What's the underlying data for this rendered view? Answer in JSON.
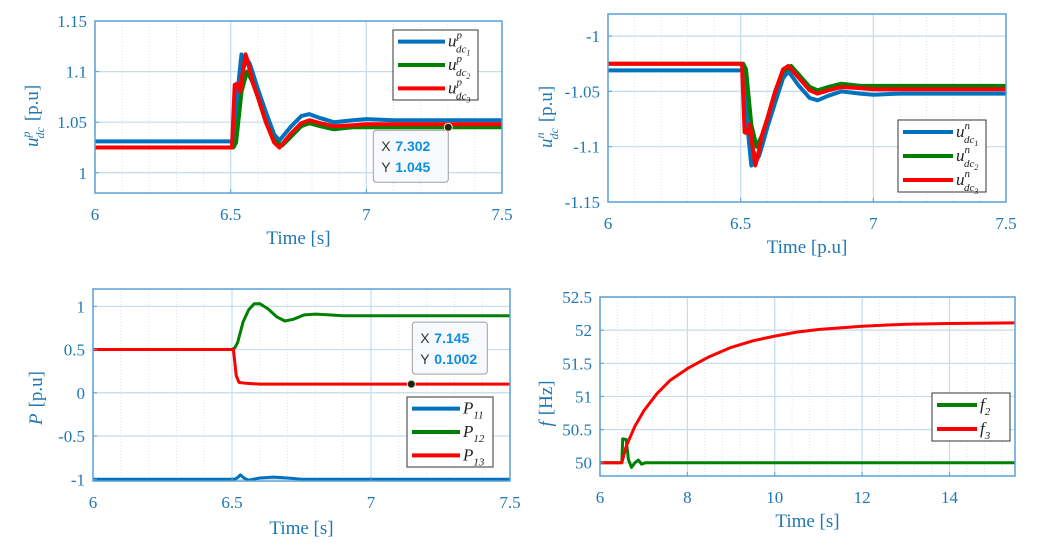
{
  "chart_data": [
    {
      "id": "udc_p",
      "type": "line",
      "xlabel": "Time [s]",
      "ylabel": {
        "base": "u",
        "sup": "p",
        "sub": "dc",
        "unit": "[p.u]"
      },
      "xlim": [
        6,
        7.5
      ],
      "ylim": [
        0.98,
        1.15
      ],
      "xticks": [
        6,
        6.5,
        7,
        7.5
      ],
      "xtick_labels": [
        "6",
        "6.5",
        "7",
        "7.5"
      ],
      "yticks": [
        1,
        1.05,
        1.1,
        1.15
      ],
      "ytick_labels": [
        "1",
        "1.05",
        "1.1",
        "1.15"
      ],
      "grid": true,
      "legend_position": "top-right",
      "series": [
        {
          "name": "u^p_dc1",
          "label": {
            "base": "u",
            "sup": "p",
            "sub": "dc",
            "idx": "1"
          },
          "color": "#0072bd",
          "x": [
            6,
            6.51,
            6.525,
            6.54,
            6.55,
            6.56,
            6.57,
            6.58,
            6.6,
            6.63,
            6.66,
            6.68,
            6.72,
            6.76,
            6.79,
            6.83,
            6.88,
            6.95,
            7.0,
            7.1,
            7.3,
            7.5
          ],
          "y": [
            1.031,
            1.031,
            1.08,
            1.117,
            1.105,
            1.112,
            1.108,
            1.1,
            1.083,
            1.06,
            1.038,
            1.032,
            1.045,
            1.056,
            1.058,
            1.054,
            1.05,
            1.052,
            1.053,
            1.052,
            1.052,
            1.052
          ]
        },
        {
          "name": "u^p_dc2",
          "label": {
            "base": "u",
            "sup": "p",
            "sub": "dc",
            "idx": "2"
          },
          "color": "#008000",
          "x": [
            6,
            6.51,
            6.52,
            6.54,
            6.56,
            6.58,
            6.6,
            6.63,
            6.66,
            6.69,
            6.72,
            6.76,
            6.79,
            6.83,
            6.88,
            6.95,
            7.0,
            7.1,
            7.3,
            7.5
          ],
          "y": [
            1.025,
            1.025,
            1.03,
            1.08,
            1.1,
            1.09,
            1.075,
            1.05,
            1.032,
            1.027,
            1.035,
            1.046,
            1.049,
            1.046,
            1.043,
            1.045,
            1.045,
            1.045,
            1.045,
            1.045
          ]
        },
        {
          "name": "u^p_dc3",
          "label": {
            "base": "u",
            "sup": "p",
            "sub": "dc",
            "idx": "3"
          },
          "color": "#ff0000",
          "x": [
            6,
            6.505,
            6.515,
            6.525,
            6.535,
            6.545,
            6.555,
            6.565,
            6.58,
            6.6,
            6.63,
            6.66,
            6.68,
            6.72,
            6.76,
            6.79,
            6.83,
            6.88,
            6.95,
            7.0,
            7.1,
            7.3,
            7.5
          ],
          "y": [
            1.025,
            1.025,
            1.087,
            1.088,
            1.08,
            1.1,
            1.117,
            1.108,
            1.09,
            1.075,
            1.05,
            1.03,
            1.025,
            1.038,
            1.049,
            1.052,
            1.049,
            1.046,
            1.047,
            1.048,
            1.048,
            1.048,
            1.048
          ]
        }
      ],
      "datatip": {
        "x_label": "X",
        "x_value": "7.302",
        "y_label": "Y",
        "y_value": "1.045",
        "x": 7.302,
        "y": 1.045
      }
    },
    {
      "id": "udc_n",
      "type": "line",
      "xlabel": "Time [p.u]",
      "ylabel": {
        "base": "u",
        "sup": "n",
        "sub": "dc",
        "unit": "[p.u]"
      },
      "xlim": [
        6,
        7.5
      ],
      "ylim": [
        -1.15,
        -0.98
      ],
      "xticks": [
        6,
        6.5,
        7,
        7.5
      ],
      "xtick_labels": [
        "6",
        "6.5",
        "7",
        "7.5"
      ],
      "yticks": [
        -1.15,
        -1.1,
        -1.05,
        -1
      ],
      "ytick_labels": [
        "-1.15",
        "-1.1",
        "-1.05",
        "-1"
      ],
      "grid": true,
      "legend_position": "bottom-right",
      "series": [
        {
          "name": "u^n_dc1",
          "label": {
            "base": "u",
            "sup": "n",
            "sub": "dc",
            "idx": "1"
          },
          "color": "#0072bd",
          "x": [
            6,
            6.51,
            6.525,
            6.54,
            6.55,
            6.56,
            6.57,
            6.58,
            6.6,
            6.63,
            6.66,
            6.68,
            6.72,
            6.76,
            6.79,
            6.83,
            6.88,
            6.95,
            7.0,
            7.1,
            7.3,
            7.5
          ],
          "y": [
            -1.031,
            -1.031,
            -1.08,
            -1.117,
            -1.105,
            -1.112,
            -1.108,
            -1.1,
            -1.083,
            -1.06,
            -1.038,
            -1.032,
            -1.045,
            -1.056,
            -1.058,
            -1.054,
            -1.05,
            -1.052,
            -1.053,
            -1.052,
            -1.052,
            -1.052
          ]
        },
        {
          "name": "u^n_dc2",
          "label": {
            "base": "u",
            "sup": "n",
            "sub": "dc",
            "idx": "2"
          },
          "color": "#008000",
          "x": [
            6,
            6.51,
            6.52,
            6.54,
            6.56,
            6.58,
            6.6,
            6.63,
            6.66,
            6.69,
            6.72,
            6.76,
            6.79,
            6.83,
            6.88,
            6.95,
            7.0,
            7.1,
            7.3,
            7.5
          ],
          "y": [
            -1.025,
            -1.025,
            -1.03,
            -1.08,
            -1.1,
            -1.09,
            -1.075,
            -1.05,
            -1.032,
            -1.027,
            -1.035,
            -1.046,
            -1.049,
            -1.046,
            -1.043,
            -1.045,
            -1.045,
            -1.045,
            -1.045,
            -1.045
          ]
        },
        {
          "name": "u^n_dc3",
          "label": {
            "base": "u",
            "sup": "n",
            "sub": "dc",
            "idx": "3"
          },
          "color": "#ff0000",
          "x": [
            6,
            6.505,
            6.515,
            6.525,
            6.535,
            6.545,
            6.555,
            6.565,
            6.58,
            6.6,
            6.63,
            6.66,
            6.68,
            6.72,
            6.76,
            6.79,
            6.83,
            6.88,
            6.95,
            7.0,
            7.1,
            7.3,
            7.5
          ],
          "y": [
            -1.025,
            -1.025,
            -1.087,
            -1.088,
            -1.08,
            -1.1,
            -1.117,
            -1.108,
            -1.09,
            -1.075,
            -1.05,
            -1.03,
            -1.027,
            -1.038,
            -1.049,
            -1.052,
            -1.049,
            -1.046,
            -1.047,
            -1.048,
            -1.048,
            -1.048,
            -1.048
          ]
        }
      ]
    },
    {
      "id": "power",
      "type": "line",
      "xlabel": "Time [s]",
      "ylabel": {
        "base": "P",
        "sup": "",
        "sub": "",
        "unit": "[p.u]"
      },
      "xlim": [
        6,
        7.5
      ],
      "ylim": [
        -1.02,
        1.2
      ],
      "xticks": [
        6,
        6.5,
        7,
        7.5
      ],
      "xtick_labels": [
        "6",
        "6.5",
        "7",
        "7.5"
      ],
      "yticks": [
        -1,
        -0.5,
        0,
        0.5,
        1
      ],
      "ytick_labels": [
        "-1",
        "-0.5",
        "0",
        "0.5",
        "1"
      ],
      "grid": true,
      "legend_position": "bottom-right",
      "series": [
        {
          "name": "P11",
          "label": {
            "base": "P",
            "sup": "",
            "sub": "11",
            "idx": ""
          },
          "color": "#0072bd",
          "x": [
            6,
            6.51,
            6.52,
            6.53,
            6.545,
            6.56,
            6.6,
            6.65,
            6.7,
            6.75,
            6.8,
            7.0,
            7.5
          ],
          "y": [
            -1.0,
            -1.0,
            -0.98,
            -0.95,
            -0.99,
            -1.01,
            -0.985,
            -0.975,
            -0.985,
            -1.0,
            -1.0,
            -1.0,
            -1.0
          ]
        },
        {
          "name": "P12",
          "label": {
            "base": "P",
            "sup": "",
            "sub": "12",
            "idx": ""
          },
          "color": "#008000",
          "x": [
            6.5,
            6.51,
            6.52,
            6.54,
            6.56,
            6.58,
            6.6,
            6.63,
            6.66,
            6.69,
            6.72,
            6.76,
            6.8,
            6.85,
            6.9,
            7.0,
            7.2,
            7.5
          ],
          "y": [
            0.5,
            0.52,
            0.58,
            0.82,
            0.96,
            1.03,
            1.03,
            0.97,
            0.88,
            0.83,
            0.85,
            0.9,
            0.91,
            0.9,
            0.89,
            0.89,
            0.89,
            0.89
          ]
        },
        {
          "name": "P13",
          "label": {
            "base": "P",
            "sup": "",
            "sub": "13",
            "idx": ""
          },
          "color": "#ff0000",
          "x": [
            6,
            6.505,
            6.515,
            6.525,
            6.55,
            6.6,
            6.7,
            7.0,
            7.5
          ],
          "y": [
            0.5,
            0.5,
            0.2,
            0.12,
            0.11,
            0.1,
            0.1,
            0.1,
            0.1
          ]
        }
      ],
      "datatip": {
        "x_label": "X",
        "x_value": "7.145",
        "y_label": "Y",
        "y_value": "0.1002",
        "x": 7.145,
        "y": 0.1002
      }
    },
    {
      "id": "frequency",
      "type": "line",
      "xlabel": "Time [s]",
      "ylabel": {
        "base": "f",
        "sup": "",
        "sub": "",
        "unit": "[Hz]"
      },
      "xlim": [
        6,
        15.5
      ],
      "ylim": [
        49.8,
        52.5
      ],
      "xticks": [
        6,
        8,
        10,
        12,
        14
      ],
      "xtick_labels": [
        "6",
        "8",
        "10",
        "12",
        "14"
      ],
      "yticks": [
        50,
        50.5,
        51,
        51.5,
        52,
        52.5
      ],
      "ytick_labels": [
        "50",
        "50.5",
        "51",
        "51.5",
        "52",
        "52.5"
      ],
      "grid": true,
      "legend_position": "right",
      "series": [
        {
          "name": "f2",
          "label": {
            "base": "f",
            "sup": "",
            "sub": "2",
            "idx": ""
          },
          "color": "#008000",
          "x": [
            6,
            6.5,
            6.52,
            6.6,
            6.65,
            6.72,
            6.8,
            6.88,
            6.95,
            7.05,
            7.2,
            8,
            15.5
          ],
          "y": [
            50,
            50,
            50.36,
            50.35,
            50.05,
            49.93,
            50.0,
            50.04,
            49.98,
            50.0,
            50.0,
            50.0,
            50.0
          ]
        },
        {
          "name": "f3",
          "label": {
            "base": "f",
            "sup": "",
            "sub": "3",
            "idx": ""
          },
          "color": "#ff0000",
          "x": [
            6,
            6.5,
            6.6,
            6.8,
            7.0,
            7.3,
            7.6,
            8.0,
            8.5,
            9.0,
            9.5,
            10.0,
            10.5,
            11.0,
            12.0,
            13.0,
            14.0,
            15.5
          ],
          "y": [
            50,
            50,
            50.25,
            50.55,
            50.78,
            51.04,
            51.24,
            51.42,
            51.6,
            51.74,
            51.84,
            51.91,
            51.97,
            52.01,
            52.06,
            52.09,
            52.1,
            52.11
          ]
        }
      ]
    }
  ]
}
